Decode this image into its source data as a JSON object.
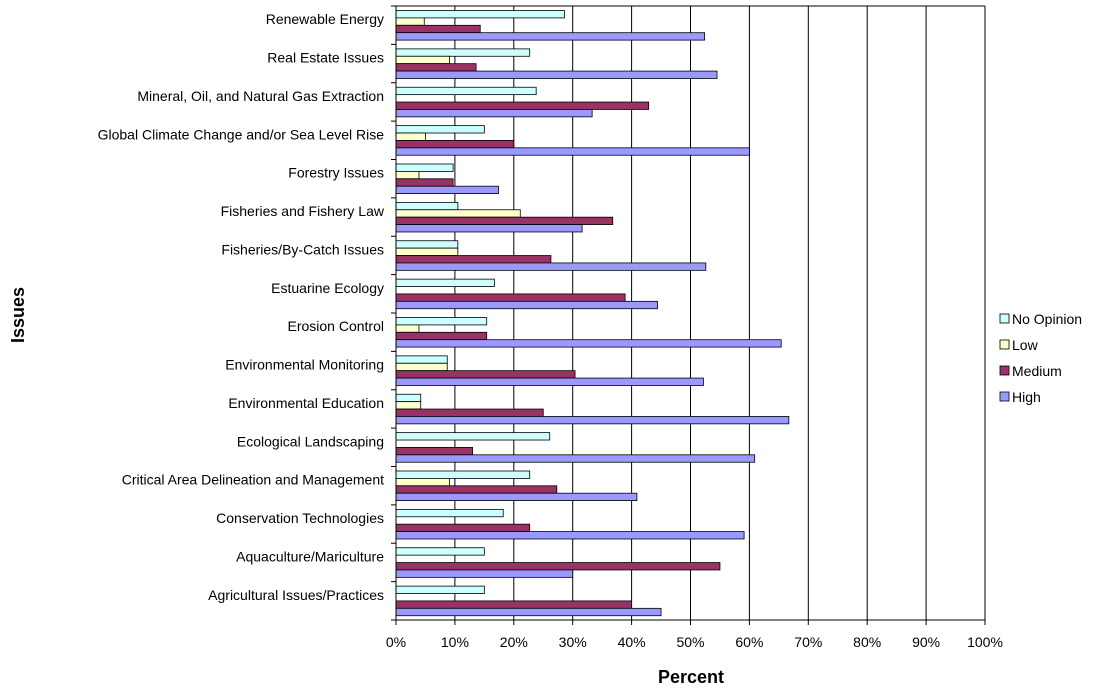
{
  "chart_data": {
    "type": "bar",
    "orientation": "horizontal",
    "xlabel": "Percent",
    "ylabel": "Issues",
    "xlim": [
      0,
      100
    ],
    "xticks": [
      "0%",
      "10%",
      "20%",
      "30%",
      "40%",
      "50%",
      "60%",
      "70%",
      "80%",
      "90%",
      "100%"
    ],
    "grid": true,
    "legend_position": "right",
    "categories": [
      "Renewable Energy",
      "Real Estate Issues",
      "Mineral, Oil, and Natural Gas Extraction",
      "Global Climate Change and/or Sea Level Rise",
      "Forestry Issues",
      "Fisheries and Fishery Law",
      "Fisheries/By-Catch Issues",
      "Estuarine Ecology",
      "Erosion Control",
      "Environmental Monitoring",
      "Environmental Education",
      "Ecological Landscaping",
      "Critical Area Delineation and Management",
      "Conservation Technologies",
      "Aquaculture/Mariculture",
      "Agricultural Issues/Practices"
    ],
    "series": [
      {
        "name": "No Opinion",
        "color": "#ccffff",
        "values": [
          28.6,
          22.7,
          23.8,
          15.0,
          9.7,
          10.5,
          10.5,
          16.7,
          15.4,
          8.7,
          4.2,
          26.1,
          22.7,
          18.2,
          15.0,
          15.0
        ]
      },
      {
        "name": "Low",
        "color": "#ffffcc",
        "values": [
          4.8,
          9.1,
          0,
          5.0,
          3.9,
          21.1,
          10.5,
          0,
          3.9,
          8.7,
          4.2,
          0,
          9.1,
          0,
          0,
          0
        ]
      },
      {
        "name": "Medium",
        "color": "#993366",
        "values": [
          14.3,
          13.6,
          42.9,
          20.0,
          9.7,
          36.8,
          26.3,
          38.9,
          15.4,
          30.4,
          25.0,
          13.0,
          27.3,
          22.7,
          55.0,
          40.0
        ]
      },
      {
        "name": "High",
        "color": "#9999ff",
        "values": [
          52.4,
          54.5,
          33.3,
          60.0,
          17.4,
          31.6,
          52.6,
          44.4,
          65.4,
          52.2,
          66.7,
          60.9,
          40.9,
          59.1,
          30.0,
          45.0
        ]
      }
    ]
  }
}
